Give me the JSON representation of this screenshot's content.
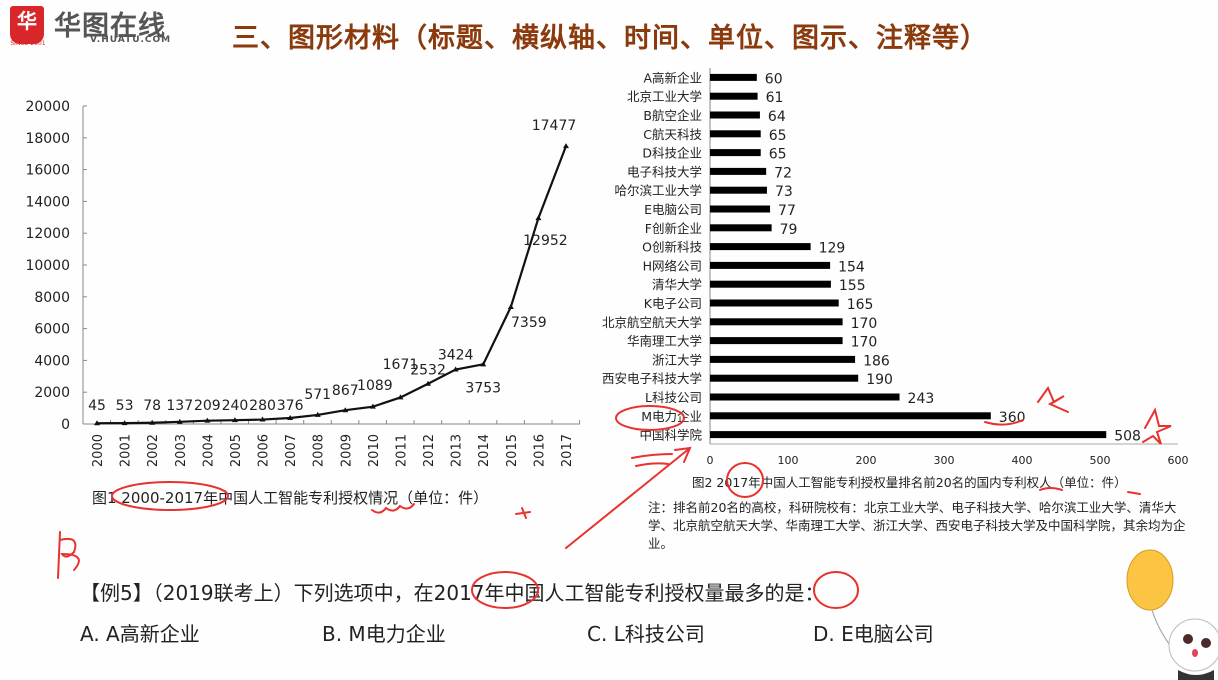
{
  "header": {
    "logo_mark": "华",
    "logo_since": "SINCE 2001",
    "logo_name": "华图在线",
    "logo_url": "V.HUATU.COM",
    "slide_title": "三、图形材料（标题、横纵轴、时间、单位、图示、注释等）"
  },
  "chart_data": [
    {
      "type": "line",
      "title": "图1 2000-2017年中国人工智能专利授权情况（单位：件）",
      "xlabel": "",
      "ylabel": "",
      "x": [
        "2000",
        "2001",
        "2002",
        "2003",
        "2004",
        "2005",
        "2006",
        "2007",
        "2008",
        "2009",
        "2010",
        "2011",
        "2012",
        "2013",
        "2014",
        "2015",
        "2016",
        "2017"
      ],
      "values": [
        45,
        53,
        78,
        137,
        209,
        240,
        280,
        376,
        571,
        867,
        1089,
        1671,
        2532,
        3424,
        3753,
        7359,
        12952,
        17477
      ],
      "ylim": [
        0,
        20000
      ],
      "yticks": [
        0,
        2000,
        4000,
        6000,
        8000,
        10000,
        12000,
        14000,
        16000,
        18000,
        20000
      ],
      "grid": false,
      "marker": "triangle",
      "color": "#111111"
    },
    {
      "type": "bar",
      "orientation": "horizontal",
      "title": "图2 2017年中国人工智能专利授权量排名前20名的国内专利权人（单位：件）",
      "categories": [
        "A高新企业",
        "北京工业大学",
        "B航空企业",
        "C航天科技",
        "D科技企业",
        "电子科技大学",
        "哈尔滨工业大学",
        "E电脑公司",
        "F创新企业",
        "O创新科技",
        "H网络公司",
        "清华大学",
        "K电子公司",
        "北京航空航天大学",
        "华南理工大学",
        "浙江大学",
        "西安电子科技大学",
        "L科技公司",
        "M电力企业",
        "中国科学院"
      ],
      "values": [
        60,
        61,
        64,
        65,
        65,
        72,
        73,
        77,
        79,
        129,
        154,
        155,
        165,
        170,
        170,
        186,
        190,
        243,
        360,
        508
      ],
      "xlim": [
        0,
        600
      ],
      "xticks": [
        0,
        100,
        200,
        300,
        400,
        500,
        600
      ],
      "grid": false,
      "color": "#000000"
    }
  ],
  "chart_note": "注：排名前20名的高校，科研院校有：北京工业大学、电子科技大学、哈尔滨工业大学、清华大学、北京航空航天大学、华南理工大学、浙江大学、西安电子科技大学及中国科学院，其余均为企业。",
  "question": {
    "text": "【例5】（2019联考上）下列选项中，在2017年中国人工智能专利授权量最多的是：",
    "options": [
      {
        "label": "A. A高新企业"
      },
      {
        "label": "B. M电力企业"
      },
      {
        "label": "C. L科技公司"
      },
      {
        "label": "D. E电脑公司"
      }
    ]
  },
  "annotations": {
    "handwritten_answer": "B",
    "ink_color": "#e8322d"
  }
}
